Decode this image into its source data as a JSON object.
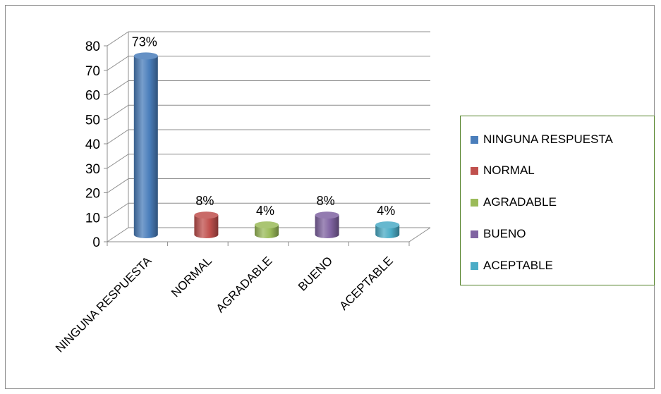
{
  "chart_data": {
    "type": "bar",
    "categories": [
      "NINGUNA RESPUESTA",
      "NORMAL",
      "AGRADABLE",
      "BUENO",
      "ACEPTABLE"
    ],
    "values": [
      73,
      8,
      4,
      8,
      4
    ],
    "data_labels": [
      "73%",
      "8%",
      "4%",
      "8%",
      "4%"
    ],
    "ylim": [
      0,
      80
    ],
    "yticks": [
      "0",
      "10",
      "20",
      "30",
      "40",
      "50",
      "60",
      "70",
      "80"
    ],
    "grid": true,
    "style": "3d-cylinder",
    "legend": {
      "placement": "right",
      "entries": [
        "NINGUNA RESPUESTA",
        "NORMAL",
        "AGRADABLE",
        "BUENO",
        "ACEPTABLE"
      ]
    },
    "colors": [
      "#4a7ebb",
      "#c0504d",
      "#9bbb59",
      "#8064a2",
      "#4bacc6"
    ],
    "title": "",
    "xlabel": "",
    "ylabel": ""
  }
}
